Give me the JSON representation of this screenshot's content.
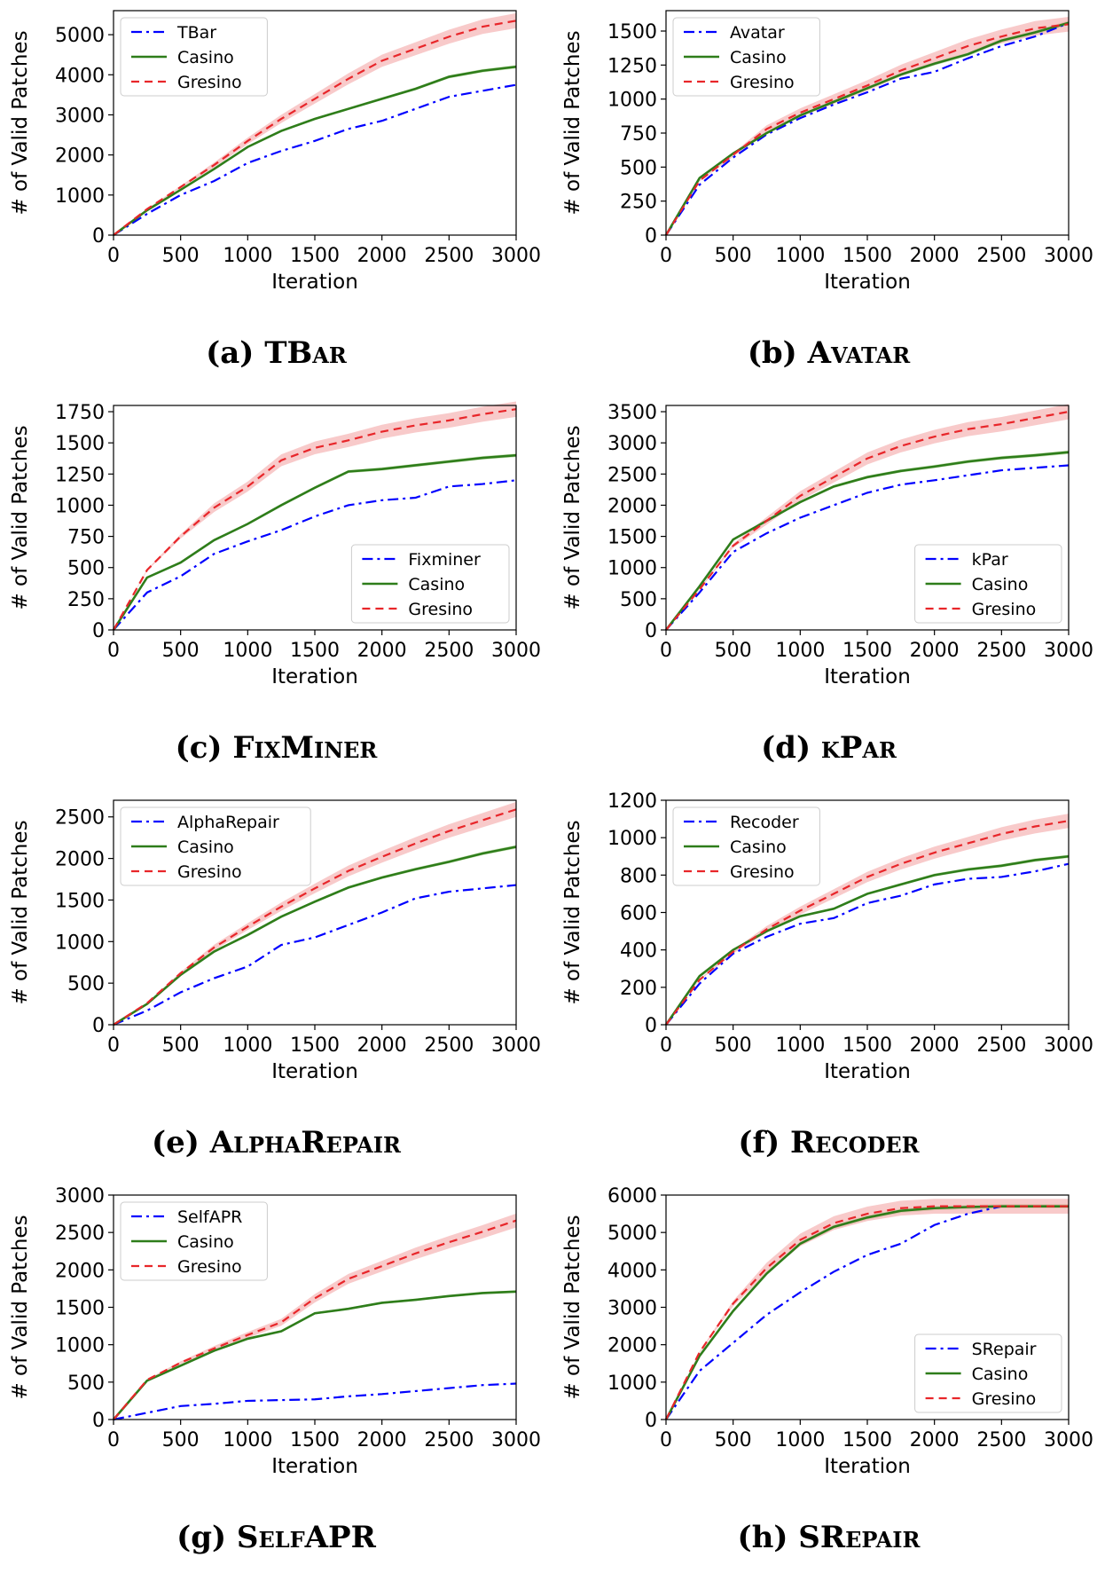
{
  "figure": {
    "xlabel": "Iteration",
    "ylabel": "# of Valid Patches",
    "colors": {
      "baseline": "#0000ff",
      "casino": "#2e7d1a",
      "gresino": "#e8262a",
      "gresino_band": "#f4a7a7",
      "casino_band": "#a6d08a"
    }
  },
  "chart_data": [
    {
      "type": "line",
      "caption_prefix": "(a) ",
      "caption_name": "TBar",
      "xlabel": "Iteration",
      "ylabel": "# of Valid Patches",
      "xlim": [
        0,
        3000
      ],
      "ylim": [
        0,
        5600
      ],
      "xticks": [
        0,
        500,
        1000,
        1500,
        2000,
        2500,
        3000
      ],
      "yticks": [
        0,
        1000,
        2000,
        3000,
        4000,
        5000
      ],
      "legend_position": "upper-left",
      "x": [
        0,
        250,
        500,
        750,
        1000,
        1250,
        1500,
        1750,
        2000,
        2250,
        2500,
        2750,
        3000
      ],
      "series": [
        {
          "name": "TBar",
          "style": "dashdot",
          "values": [
            0,
            530,
            1000,
            1350,
            1800,
            2100,
            2350,
            2650,
            2850,
            3150,
            3450,
            3600,
            3750
          ]
        },
        {
          "name": "Casino",
          "style": "solid",
          "values": [
            0,
            620,
            1130,
            1650,
            2200,
            2600,
            2900,
            3150,
            3400,
            3650,
            3950,
            4100,
            4200
          ]
        },
        {
          "name": "Gresino",
          "style": "dashed",
          "values": [
            0,
            650,
            1200,
            1750,
            2350,
            2900,
            3400,
            3900,
            4350,
            4650,
            4950,
            5200,
            5350
          ]
        }
      ]
    },
    {
      "type": "line",
      "caption_prefix": "(b) ",
      "caption_name": "Avatar",
      "xlabel": "Iteration",
      "ylabel": "# of Valid Patches",
      "xlim": [
        0,
        3000
      ],
      "ylim": [
        0,
        1650
      ],
      "xticks": [
        0,
        500,
        1000,
        1500,
        2000,
        2500,
        3000
      ],
      "yticks": [
        0,
        250,
        500,
        750,
        1000,
        1250,
        1500
      ],
      "legend_position": "upper-left",
      "x": [
        0,
        250,
        500,
        750,
        1000,
        1250,
        1500,
        1750,
        2000,
        2250,
        2500,
        2750,
        3000
      ],
      "series": [
        {
          "name": "Avatar",
          "style": "dashdot",
          "values": [
            0,
            370,
            570,
            740,
            860,
            960,
            1050,
            1150,
            1200,
            1300,
            1390,
            1460,
            1560
          ]
        },
        {
          "name": "Casino",
          "style": "solid",
          "values": [
            0,
            420,
            600,
            750,
            880,
            980,
            1080,
            1180,
            1260,
            1330,
            1430,
            1490,
            1560
          ]
        },
        {
          "name": "Gresino",
          "style": "dashed",
          "values": [
            0,
            400,
            590,
            780,
            900,
            1000,
            1100,
            1210,
            1300,
            1390,
            1460,
            1520,
            1550
          ]
        }
      ]
    },
    {
      "type": "line",
      "caption_prefix": "(c) ",
      "caption_name": "FixMiner",
      "xlabel": "Iteration",
      "ylabel": "# of Valid Patches",
      "xlim": [
        0,
        3000
      ],
      "ylim": [
        0,
        1800
      ],
      "xticks": [
        0,
        500,
        1000,
        1500,
        2000,
        2500,
        3000
      ],
      "yticks": [
        0,
        250,
        500,
        750,
        1000,
        1250,
        1500,
        1750
      ],
      "legend_position": "lower-right",
      "x": [
        0,
        250,
        500,
        750,
        1000,
        1250,
        1500,
        1750,
        2000,
        2250,
        2500,
        2750,
        3000
      ],
      "series": [
        {
          "name": "Fixminer",
          "style": "dashdot",
          "values": [
            0,
            300,
            430,
            610,
            710,
            800,
            910,
            1000,
            1040,
            1060,
            1150,
            1170,
            1200
          ]
        },
        {
          "name": "Casino",
          "style": "solid",
          "values": [
            0,
            420,
            540,
            720,
            850,
            1000,
            1140,
            1270,
            1290,
            1320,
            1350,
            1380,
            1400
          ]
        },
        {
          "name": "Gresino",
          "style": "dashed",
          "values": [
            0,
            480,
            750,
            980,
            1150,
            1360,
            1460,
            1520,
            1590,
            1640,
            1680,
            1730,
            1770
          ]
        }
      ]
    },
    {
      "type": "line",
      "caption_prefix": "(d) ",
      "caption_name": "kPar",
      "xlabel": "Iteration",
      "ylabel": "# of Valid Patches",
      "xlim": [
        0,
        3000
      ],
      "ylim": [
        0,
        3600
      ],
      "xticks": [
        0,
        500,
        1000,
        1500,
        2000,
        2500,
        3000
      ],
      "yticks": [
        0,
        500,
        1000,
        1500,
        2000,
        2500,
        3000,
        3500
      ],
      "legend_position": "lower-right",
      "x": [
        0,
        250,
        500,
        750,
        1000,
        1250,
        1500,
        1750,
        2000,
        2250,
        2500,
        2750,
        3000
      ],
      "series": [
        {
          "name": "kPar",
          "style": "dashdot",
          "values": [
            0,
            600,
            1250,
            1550,
            1800,
            2000,
            2200,
            2330,
            2400,
            2480,
            2560,
            2600,
            2640
          ]
        },
        {
          "name": "Casino",
          "style": "solid",
          "values": [
            0,
            700,
            1450,
            1750,
            2050,
            2300,
            2450,
            2550,
            2620,
            2700,
            2760,
            2800,
            2850
          ]
        },
        {
          "name": "Gresino",
          "style": "dashed",
          "values": [
            0,
            650,
            1350,
            1750,
            2150,
            2450,
            2750,
            2950,
            3100,
            3220,
            3300,
            3400,
            3500
          ]
        }
      ]
    },
    {
      "type": "line",
      "caption_prefix": "(e) ",
      "caption_name": "AlphaRepair",
      "xlabel": "Iteration",
      "ylabel": "# of Valid Patches",
      "xlim": [
        0,
        3000
      ],
      "ylim": [
        0,
        2700
      ],
      "xticks": [
        0,
        500,
        1000,
        1500,
        2000,
        2500,
        3000
      ],
      "yticks": [
        0,
        500,
        1000,
        1500,
        2000,
        2500
      ],
      "legend_position": "upper-left",
      "x": [
        0,
        250,
        500,
        750,
        1000,
        1250,
        1500,
        1750,
        2000,
        2250,
        2500,
        2750,
        3000
      ],
      "series": [
        {
          "name": "AlphaRepair",
          "style": "dashdot",
          "values": [
            0,
            170,
            390,
            560,
            700,
            960,
            1050,
            1200,
            1350,
            1520,
            1600,
            1640,
            1680
          ]
        },
        {
          "name": "Casino",
          "style": "solid",
          "values": [
            0,
            250,
            600,
            880,
            1080,
            1300,
            1480,
            1650,
            1770,
            1870,
            1960,
            2060,
            2140
          ]
        },
        {
          "name": "Gresino",
          "style": "dashed",
          "values": [
            0,
            260,
            620,
            930,
            1180,
            1420,
            1640,
            1850,
            2020,
            2180,
            2330,
            2460,
            2590
          ]
        }
      ]
    },
    {
      "type": "line",
      "caption_prefix": "(f) ",
      "caption_name": "Recoder",
      "xlabel": "Iteration",
      "ylabel": "# of Valid Patches",
      "xlim": [
        0,
        3000
      ],
      "ylim": [
        0,
        1200
      ],
      "xticks": [
        0,
        500,
        1000,
        1500,
        2000,
        2500,
        3000
      ],
      "yticks": [
        0,
        200,
        400,
        600,
        800,
        1000,
        1200
      ],
      "legend_position": "upper-left",
      "x": [
        0,
        250,
        500,
        750,
        1000,
        1250,
        1500,
        1750,
        2000,
        2250,
        2500,
        2750,
        3000
      ],
      "series": [
        {
          "name": "Recoder",
          "style": "dashdot",
          "values": [
            0,
            220,
            380,
            470,
            540,
            570,
            650,
            690,
            750,
            780,
            790,
            820,
            860
          ]
        },
        {
          "name": "Casino",
          "style": "solid",
          "values": [
            0,
            260,
            400,
            500,
            580,
            620,
            700,
            750,
            800,
            830,
            850,
            880,
            900
          ]
        },
        {
          "name": "Gresino",
          "style": "dashed",
          "values": [
            0,
            240,
            390,
            510,
            610,
            700,
            790,
            860,
            920,
            970,
            1020,
            1060,
            1090
          ]
        }
      ]
    },
    {
      "type": "line",
      "caption_prefix": "(g) ",
      "caption_name": "SelfAPR",
      "xlabel": "Iteration",
      "ylabel": "# of Valid Patches",
      "xlim": [
        0,
        3000
      ],
      "ylim": [
        0,
        3000
      ],
      "xticks": [
        0,
        500,
        1000,
        1500,
        2000,
        2500,
        3000
      ],
      "yticks": [
        0,
        500,
        1000,
        1500,
        2000,
        2500,
        3000
      ],
      "legend_position": "upper-left",
      "x": [
        0,
        250,
        500,
        750,
        1000,
        1250,
        1500,
        1750,
        2000,
        2250,
        2500,
        2750,
        3000
      ],
      "series": [
        {
          "name": "SelfAPR",
          "style": "dashdot",
          "values": [
            0,
            90,
            180,
            210,
            250,
            260,
            270,
            310,
            340,
            380,
            420,
            460,
            480
          ]
        },
        {
          "name": "Casino",
          "style": "solid",
          "values": [
            0,
            520,
            720,
            920,
            1080,
            1180,
            1420,
            1480,
            1560,
            1600,
            1650,
            1690,
            1710
          ]
        },
        {
          "name": "Gresino",
          "style": "dashed",
          "values": [
            0,
            530,
            760,
            950,
            1130,
            1300,
            1620,
            1880,
            2050,
            2220,
            2370,
            2510,
            2660
          ]
        }
      ]
    },
    {
      "type": "line",
      "caption_prefix": "(h) ",
      "caption_name": "SRepair",
      "xlabel": "Iteration",
      "ylabel": "# of Valid Patches",
      "xlim": [
        0,
        3000
      ],
      "ylim": [
        0,
        6000
      ],
      "xticks": [
        0,
        500,
        1000,
        1500,
        2000,
        2500,
        3000
      ],
      "yticks": [
        0,
        1000,
        2000,
        3000,
        4000,
        5000,
        6000
      ],
      "legend_position": "lower-right",
      "x": [
        0,
        250,
        500,
        750,
        1000,
        1250,
        1500,
        1750,
        2000,
        2250,
        2500,
        2750,
        3000
      ],
      "series": [
        {
          "name": "SRepair",
          "style": "dashdot",
          "values": [
            0,
            1300,
            2050,
            2800,
            3400,
            3950,
            4400,
            4700,
            5200,
            5500,
            5700,
            5700,
            5700
          ]
        },
        {
          "name": "Casino",
          "style": "solid",
          "values": [
            0,
            1700,
            2900,
            3900,
            4700,
            5150,
            5400,
            5580,
            5650,
            5680,
            5700,
            5700,
            5700
          ]
        },
        {
          "name": "Gresino",
          "style": "dashed",
          "values": [
            0,
            1800,
            3100,
            4050,
            4800,
            5250,
            5500,
            5650,
            5700,
            5700,
            5700,
            5700,
            5700
          ]
        }
      ]
    }
  ]
}
